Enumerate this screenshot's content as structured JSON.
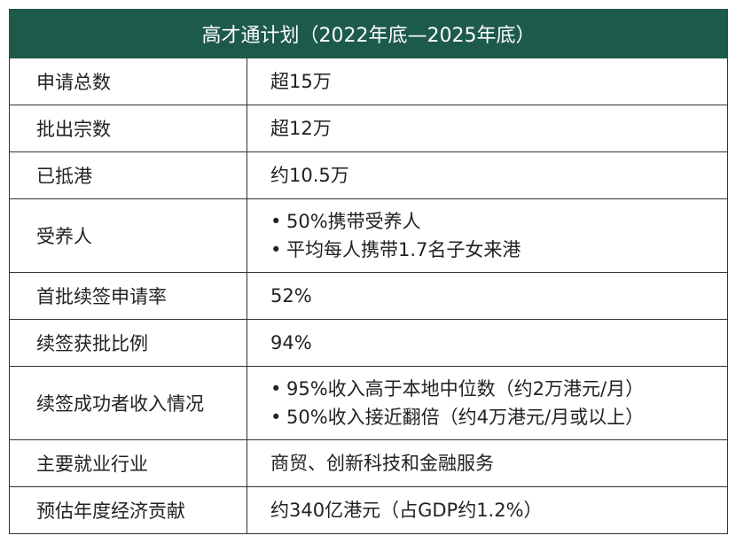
{
  "header": {
    "title": "高才通计划（2022年底—2025年底）"
  },
  "table": {
    "rows": [
      [
        "申请总数",
        [
          "超15万"
        ]
      ],
      [
        "批出宗数",
        [
          "超12万"
        ]
      ],
      [
        "已抵港",
        [
          "约10.5万"
        ]
      ],
      [
        "受养人",
        [
          "50%携带受养人",
          "平均每人携带1.7名子女来港"
        ]
      ],
      [
        "首批续签申请率",
        [
          "52%"
        ]
      ],
      [
        "续签获批比例",
        [
          "94%"
        ]
      ],
      [
        "续签成功者收入情况",
        [
          "95%收入高于本地中位数（约2万港元/月）",
          "50%收入接近翻倍（约4万港元/月或以上）"
        ]
      ],
      [
        "主要就业行业",
        [
          "商贸、创新科技和金融服务"
        ]
      ],
      [
        "预估年度经济贡献",
        [
          "约340亿港元（占GDP约1.2%）"
        ]
      ]
    ]
  }
}
